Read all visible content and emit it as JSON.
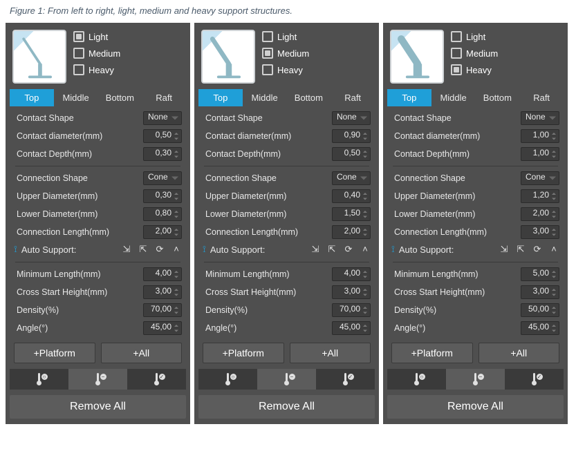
{
  "caption": "Figure 1: From left to right, light, medium  and heavy support structures.",
  "colors": {
    "panel_bg": "#4f4f4f",
    "accent": "#1f9fd8",
    "input_bg": "#3d3d3d",
    "button_bg": "#5c5c5c",
    "dark_bg": "#3a3a3a",
    "text": "#e8e8e8",
    "preview_fill": "#8fb8c4",
    "preview_bg": "#ffffff"
  },
  "shared": {
    "checks": {
      "light": "Light",
      "medium": "Medium",
      "heavy": "Heavy"
    },
    "tabs": {
      "top": "Top",
      "middle": "Middle",
      "bottom": "Bottom",
      "raft": "Raft"
    },
    "labels": {
      "contact_shape": "Contact Shape",
      "contact_diameter": "Contact diameter(mm)",
      "contact_depth": "Contact Depth(mm)",
      "connection_shape": "Connection Shape",
      "upper_diameter": "Upper Diameter(mm)",
      "lower_diameter": "Lower Diameter(mm)",
      "connection_length": "Connection Length(mm)",
      "auto_support": "Auto Support:",
      "min_length": "Minimum Length(mm)",
      "cross_start": "Cross Start Height(mm)",
      "density": "Density(%)",
      "angle": "Angle(°)",
      "platform": "+Platform",
      "all": "+All",
      "remove_all": "Remove All"
    },
    "selects": {
      "none": "None",
      "cone": "Cone"
    }
  },
  "panels": [
    {
      "checked": "light",
      "contact_diameter": "0,50",
      "contact_depth": "0,30",
      "upper_diameter": "0,30",
      "lower_diameter": "0,80",
      "connection_length": "2,00",
      "min_length": "4,00",
      "cross_start": "3,00",
      "density": "70,00",
      "angle": "45,00",
      "strut_w": 4
    },
    {
      "checked": "medium",
      "contact_diameter": "0,90",
      "contact_depth": "0,50",
      "upper_diameter": "0,40",
      "lower_diameter": "1,50",
      "connection_length": "2,00",
      "min_length": "4,00",
      "cross_start": "3,00",
      "density": "70,00",
      "angle": "45,00",
      "strut_w": 7
    },
    {
      "checked": "heavy",
      "contact_diameter": "1,00",
      "contact_depth": "1,00",
      "upper_diameter": "1,20",
      "lower_diameter": "2,00",
      "connection_length": "3,00",
      "min_length": "5,00",
      "cross_start": "3,00",
      "density": "50,00",
      "angle": "45,00",
      "strut_w": 11
    }
  ]
}
